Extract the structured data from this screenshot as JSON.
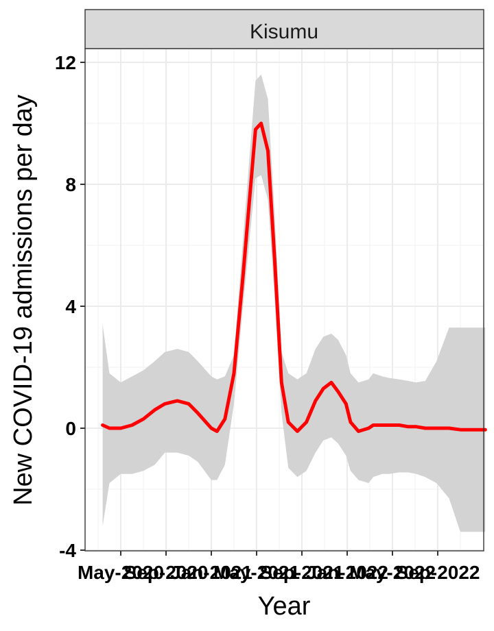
{
  "chart_data": {
    "type": "line",
    "facet": "Kisumu",
    "xlabel": "Year",
    "ylabel": "New COVID-19 admissions per day",
    "ylim": [
      -4,
      12.5
    ],
    "yticks": [
      -4,
      0,
      4,
      8,
      12
    ],
    "xtick_labels": [
      "May-2020",
      "Sep-2020",
      "Jan-2021",
      "May-2021",
      "Sep-2021",
      "Jan-2022",
      "May-2022",
      "Sep-2022"
    ],
    "xtick_months": [
      0,
      4,
      8,
      12,
      16,
      20,
      24,
      28
    ],
    "x_month_offsets": [
      -1.6,
      -1.0,
      0,
      1.0,
      2.0,
      3.0,
      3.9,
      5.0,
      6.0,
      6.8,
      8.0,
      8.5,
      9.2,
      10.0,
      10.8,
      11.9,
      12.4,
      13.0,
      13.6,
      14.2,
      14.8,
      15.6,
      16.4,
      17.2,
      17.9,
      18.6,
      19.2,
      19.9,
      20.3,
      21.0,
      21.9,
      22.3,
      23.1,
      23.7,
      24.6,
      25.4,
      26.1,
      26.9,
      27.9,
      29.0,
      30.0,
      31.2,
      32.2
    ],
    "series": [
      {
        "color": "#ff0000",
        "y": [
          0.1,
          0.0,
          0.0,
          0.1,
          0.3,
          0.6,
          0.8,
          0.9,
          0.8,
          0.5,
          0.0,
          -0.1,
          0.3,
          1.8,
          5.0,
          9.8,
          10.0,
          9.1,
          5.5,
          1.5,
          0.2,
          -0.1,
          0.2,
          0.9,
          1.3,
          1.5,
          1.2,
          0.8,
          0.2,
          -0.1,
          0.0,
          0.1,
          0.1,
          0.1,
          0.1,
          0.05,
          0.05,
          0.0,
          0.0,
          0.0,
          -0.05,
          -0.05,
          -0.05
        ],
        "lower": [
          -3.2,
          -1.8,
          -1.5,
          -1.5,
          -1.4,
          -1.2,
          -0.8,
          -0.8,
          -0.9,
          -1.1,
          -1.7,
          -1.7,
          -1.2,
          0.8,
          4.0,
          8.2,
          8.3,
          7.5,
          4.2,
          0.5,
          -1.3,
          -1.6,
          -1.4,
          -0.8,
          -0.4,
          -0.3,
          -0.5,
          -0.9,
          -1.4,
          -1.7,
          -1.8,
          -1.6,
          -1.5,
          -1.5,
          -1.45,
          -1.45,
          -1.5,
          -1.6,
          -1.8,
          -2.3,
          -3.4,
          -3.4,
          -3.4
        ],
        "upper": [
          3.4,
          1.8,
          1.5,
          1.7,
          1.9,
          2.2,
          2.5,
          2.6,
          2.5,
          2.2,
          1.7,
          1.6,
          1.7,
          2.4,
          6.2,
          11.4,
          11.6,
          10.8,
          7.0,
          2.5,
          1.8,
          1.6,
          1.8,
          2.6,
          3.0,
          3.1,
          2.9,
          2.4,
          1.8,
          1.5,
          1.6,
          1.8,
          1.7,
          1.65,
          1.6,
          1.55,
          1.5,
          1.55,
          2.2,
          3.3,
          3.3,
          3.3,
          3.3
        ]
      }
    ],
    "grid": true,
    "confidence_band_color": "#d3d3d3"
  }
}
